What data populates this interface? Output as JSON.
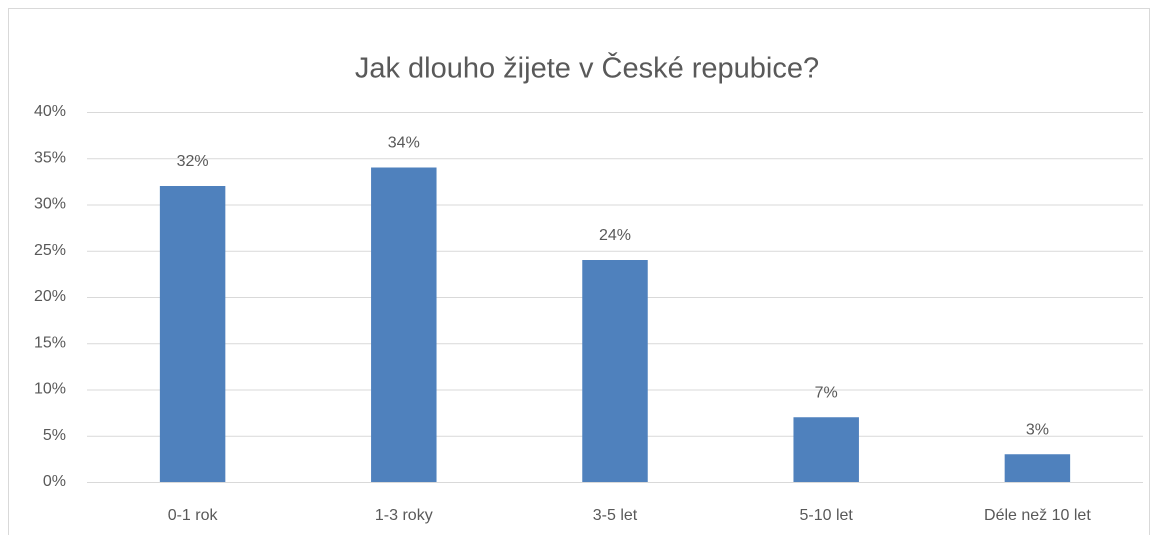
{
  "chart_data": {
    "type": "bar",
    "title": "Jak dlouho žijete v České repubice?",
    "categories": [
      "0-1 rok",
      "1-3 roky",
      "3-5 let",
      "5-10 let",
      "Déle než 10 let"
    ],
    "values": [
      32,
      34,
      24,
      7,
      3
    ],
    "value_labels": [
      "32%",
      "34%",
      "24%",
      "7%",
      "3%"
    ],
    "color": "#4f81bd",
    "ylim": [
      0,
      40
    ],
    "yticks": [
      {
        "value": 0,
        "label": "0%"
      },
      {
        "value": 5,
        "label": "5%"
      },
      {
        "value": 10,
        "label": "10%"
      },
      {
        "value": 15,
        "label": "15%"
      },
      {
        "value": 20,
        "label": "20%"
      },
      {
        "value": 25,
        "label": "25%"
      },
      {
        "value": 30,
        "label": "30%"
      },
      {
        "value": 35,
        "label": "35%"
      },
      {
        "value": 40,
        "label": "40%"
      }
    ],
    "grid": true
  }
}
